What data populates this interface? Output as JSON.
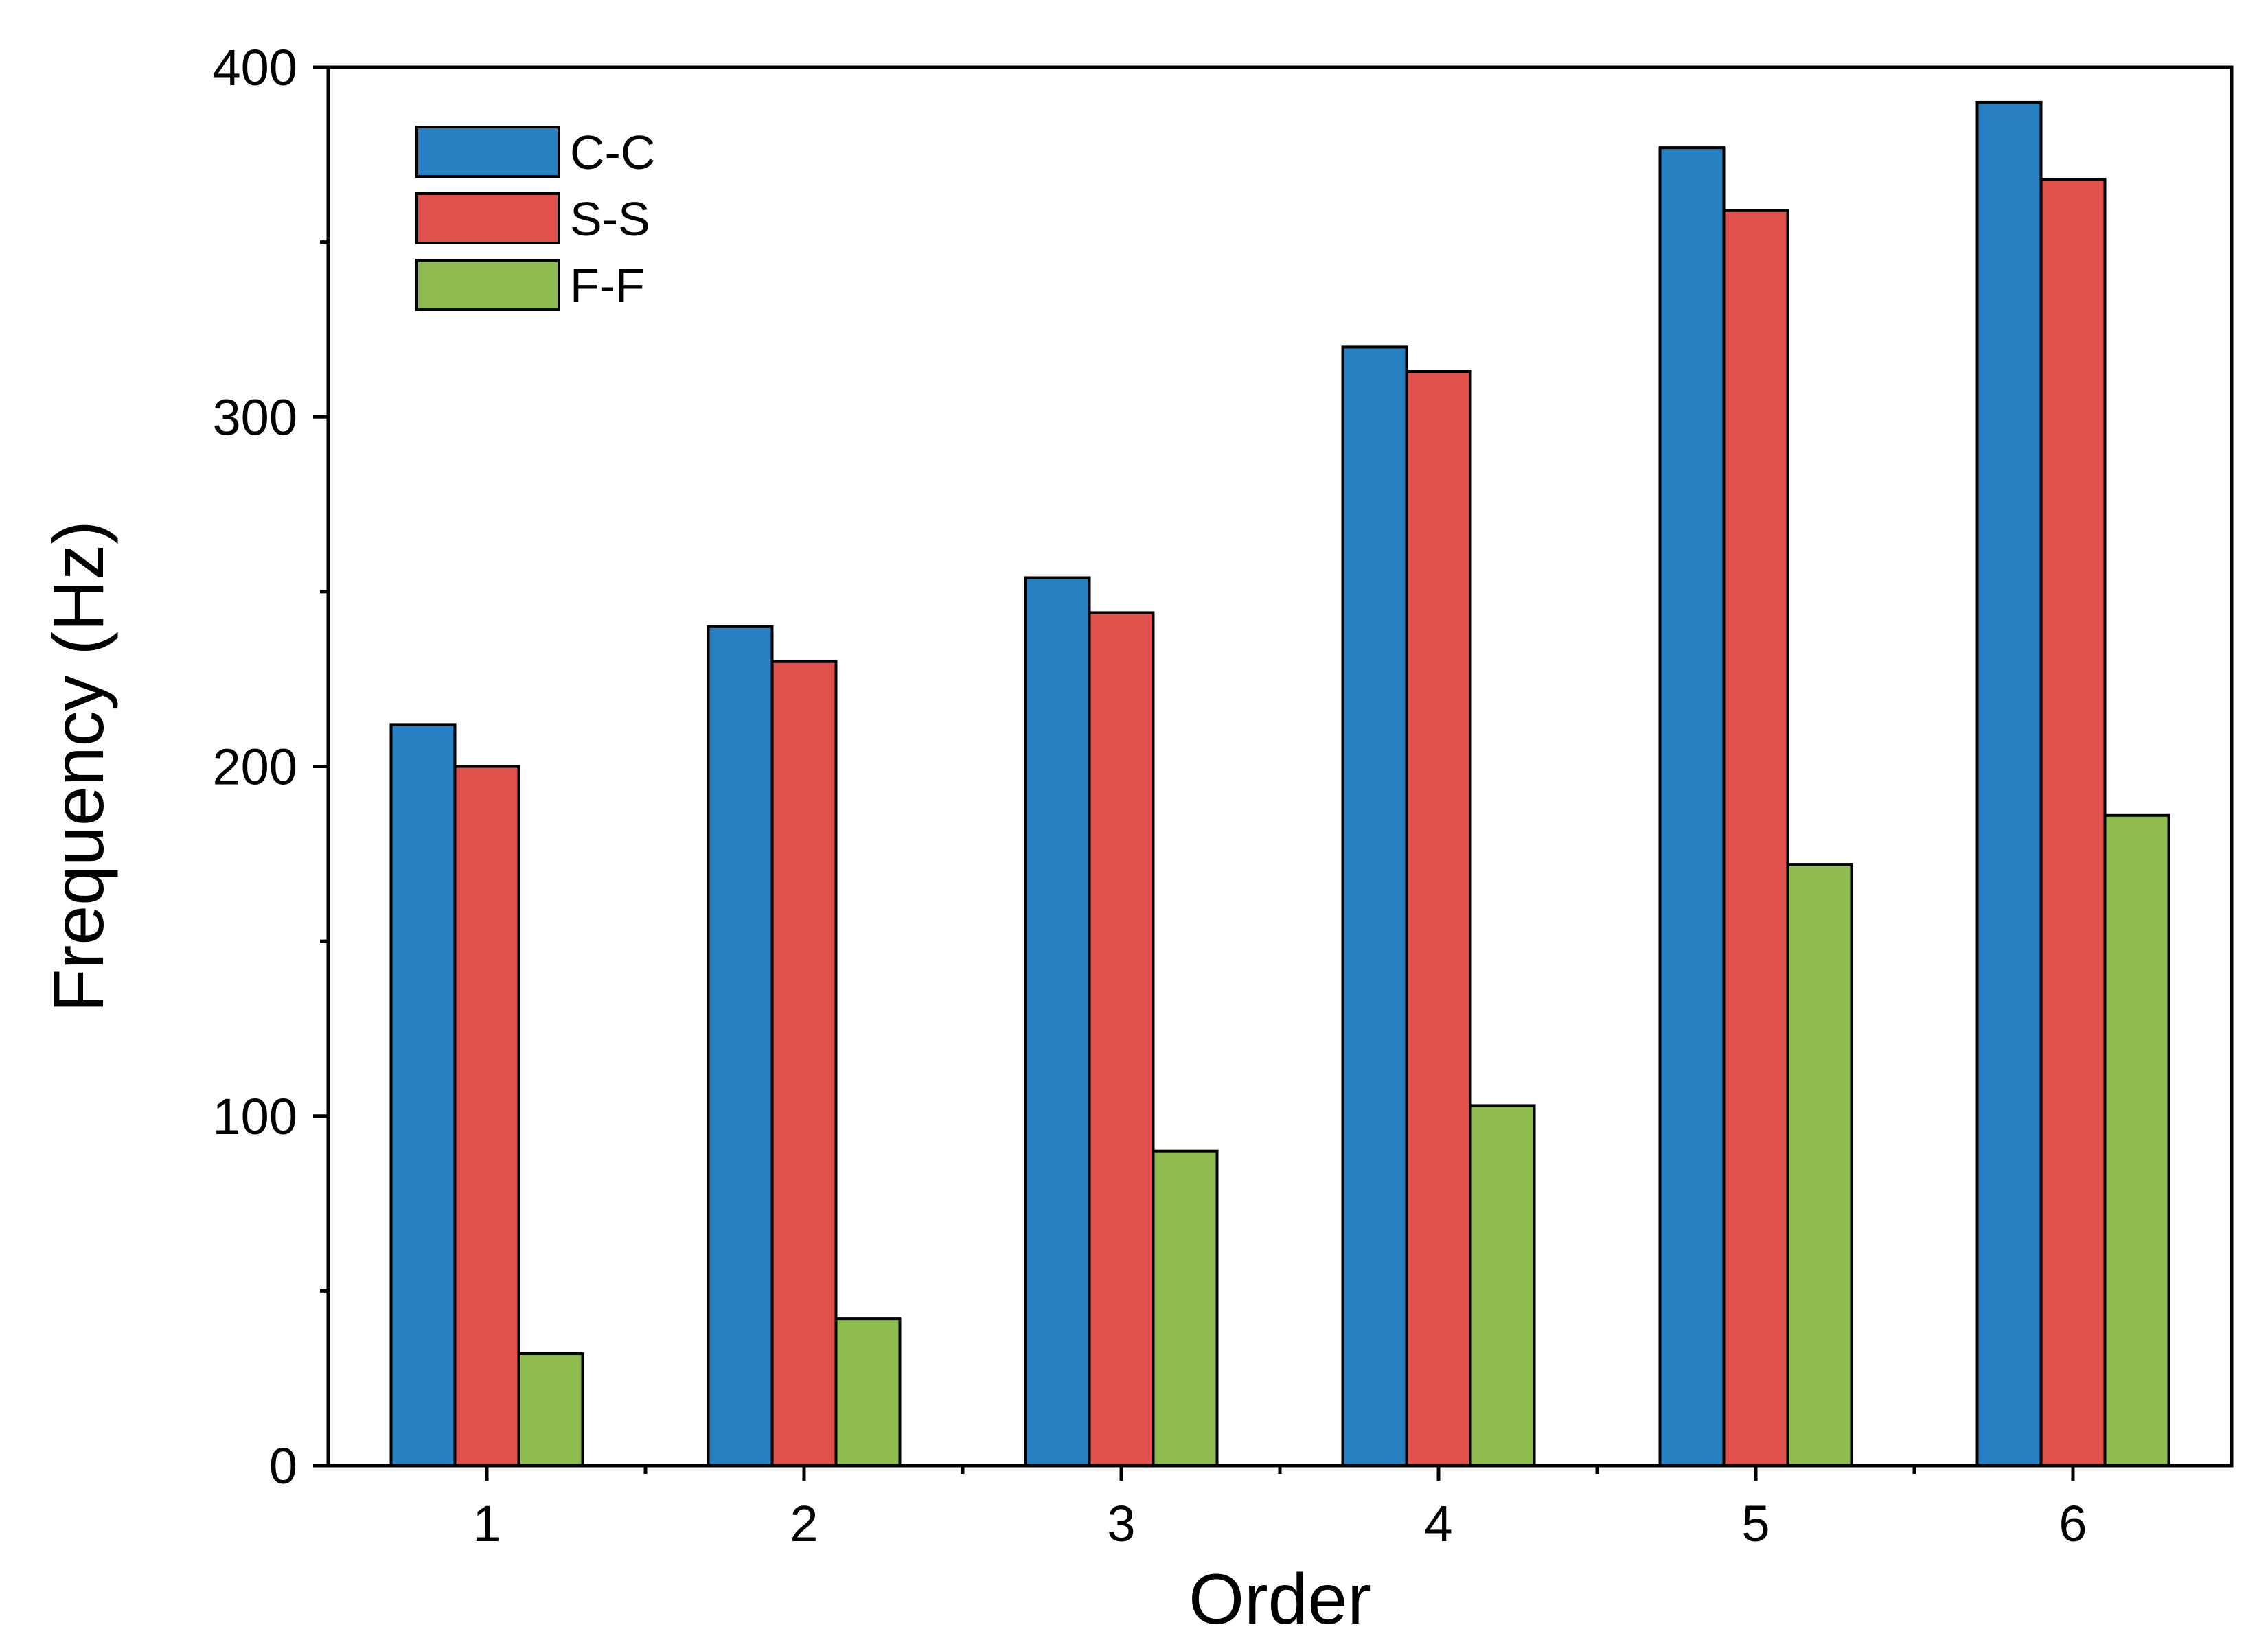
{
  "chart_data": {
    "type": "bar",
    "title": "",
    "xlabel": "Order",
    "ylabel": "Frequency (Hz)",
    "categories": [
      "1",
      "2",
      "3",
      "4",
      "5",
      "6"
    ],
    "series": [
      {
        "name": "C-C",
        "color": "#2680C2",
        "values": [
          212,
          240,
          254,
          320,
          377,
          390
        ]
      },
      {
        "name": "S-S",
        "color": "#E0504D",
        "values": [
          200,
          230,
          244,
          313,
          359,
          368
        ]
      },
      {
        "name": "F-F",
        "color": "#8FBC4F",
        "values": [
          32,
          42,
          90,
          103,
          172,
          186
        ]
      }
    ],
    "ylim": [
      0,
      400
    ],
    "yticks": [
      "0",
      "100",
      "200",
      "300",
      "400"
    ],
    "y_minor_step": 50,
    "grid": false,
    "legend_position": "top-left"
  }
}
